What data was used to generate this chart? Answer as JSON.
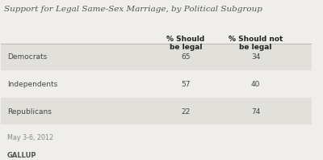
{
  "title": "Support for Legal Same-Sex Marriage, by Political Subgroup",
  "col1_header_line1": "% Should",
  "col1_header_line2": "be legal",
  "col2_header_line1": "% Should not",
  "col2_header_line2": "be legal",
  "rows": [
    {
      "label": "Democrats",
      "col1": "65",
      "col2": "34"
    },
    {
      "label": "Independents",
      "col1": "57",
      "col2": "40"
    },
    {
      "label": "Republicans",
      "col1": "22",
      "col2": "74"
    }
  ],
  "footnote": "May 3-6, 2012",
  "source": "GALLUP",
  "bg_color": "#f0eeea",
  "row_shaded_color": "#e2e0db",
  "row_unshaded_color": "#f0eeea",
  "title_color": "#555555",
  "header_color": "#222222",
  "data_color": "#444444",
  "footnote_color": "#888888",
  "source_color": "#555555"
}
